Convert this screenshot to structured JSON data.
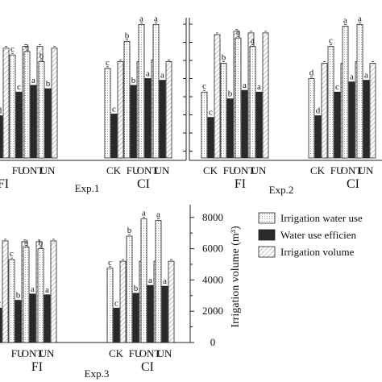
{
  "chart_data": [
    {
      "type": "bar",
      "panel_label": "Exp.1",
      "groups": [
        "FI",
        "CI"
      ],
      "categories": [
        "CK",
        "FU",
        "ONT",
        "UN"
      ],
      "series": [
        {
          "name": "Irrigation water use efficiency",
          "values": {
            "FI": [
              null,
              6.1,
              6.3,
              5.7
            ],
            "CI": [
              5.3,
              6.9,
              7.9,
              7.9
            ]
          },
          "letters": {
            "FI": [
              "d",
              "c",
              "a",
              "b"
            ],
            "CI": [
              "c",
              "b",
              "a",
              "a"
            ]
          }
        },
        {
          "name": "Water use efficiency",
          "values": {
            "FI": [
              2.5,
              3.9,
              4.3,
              4.1
            ],
            "CI": [
              2.6,
              4.3,
              4.7,
              4.6
            ]
          },
          "letters": {
            "FI": [
              "d",
              "c",
              "a",
              "b"
            ],
            "CI": [
              "c",
              "b",
              "a",
              "a"
            ]
          }
        },
        {
          "name": "Irrigation volume",
          "values": {
            "FI": [
              6.5,
              6.6,
              6.6,
              6.5
            ],
            "CI": [
              5.7,
              5.7,
              5.8,
              5.7
            ]
          }
        }
      ]
    },
    {
      "type": "bar",
      "panel_label": "Exp.2",
      "groups": [
        "FI",
        "CI"
      ],
      "categories": [
        "CK",
        "FU",
        "ONT",
        "UN"
      ],
      "series": [
        {
          "name": "Irrigation water use efficiency",
          "values": {
            "FI": [
              3.9,
              5.6,
              7.1,
              6.6
            ],
            "CI": [
              4.7,
              6.6,
              7.8,
              7.9
            ]
          },
          "letters": {
            "FI": [
              "c",
              "b",
              "a",
              "a"
            ],
            "CI": [
              "d",
              "c",
              "a",
              "a"
            ]
          }
        },
        {
          "name": "Water use efficiency",
          "values": {
            "FI": [
              2.4,
              3.5,
              4.0,
              3.9
            ],
            "CI": [
              2.5,
              3.9,
              4.5,
              4.6
            ]
          },
          "letters": {
            "FI": [
              "c",
              "b",
              "a",
              "a"
            ],
            "CI": [
              "d",
              "c",
              "a",
              "a"
            ]
          }
        },
        {
          "name": "Irrigation volume",
          "values": {
            "FI": [
              7.3,
              7.5,
              7.4,
              7.4
            ],
            "CI": [
              5.6,
              5.6,
              5.7,
              5.6
            ]
          }
        }
      ]
    },
    {
      "type": "bar",
      "panel_label": "Exp.3",
      "groups": [
        "FI",
        "CI"
      ],
      "categories": [
        "CK",
        "FU",
        "ONT",
        "UN"
      ],
      "ylabel": "Irrigation volume (m³)",
      "ylim": [
        0,
        8000
      ],
      "yticks": [
        "0",
        "2000",
        "4000",
        "6000",
        "8000"
      ],
      "series": [
        {
          "name": "Irrigation water use efficiency",
          "values": {
            "FI": [
              4300,
              5300,
              6100,
              6000
            ],
            "CI": [
              4750,
              6800,
              7900,
              7800
            ]
          },
          "letters": {
            "FI": [
              "",
              "c",
              "a",
              "b"
            ],
            "CI": [
              "c",
              "b",
              "a",
              "a"
            ]
          }
        },
        {
          "name": "Water use efficiency",
          "values": {
            "FI": [
              2200,
              2700,
              3100,
              3050
            ],
            "CI": [
              2200,
              3150,
              3650,
              3600
            ]
          },
          "letters": {
            "FI": [
              "c",
              "b",
              "a",
              "a"
            ],
            "CI": [
              "c",
              "b",
              "a",
              "a"
            ]
          }
        },
        {
          "name": "Irrigation volume",
          "values": {
            "FI": [
              6500,
              6450,
              6450,
              6500
            ],
            "CI": [
              5200,
              5200,
              5200,
              5200
            ]
          }
        }
      ]
    }
  ],
  "legend": {
    "items": [
      {
        "label": "Irrigation water use",
        "pattern": "dots"
      },
      {
        "label": "Water use efficien",
        "pattern": "solid"
      },
      {
        "label": "Irrigation volume",
        "pattern": "hatch"
      }
    ]
  },
  "colors": {
    "dark_bar": "#2a2a2a",
    "outline": "#222222",
    "background": "#ffffff"
  }
}
